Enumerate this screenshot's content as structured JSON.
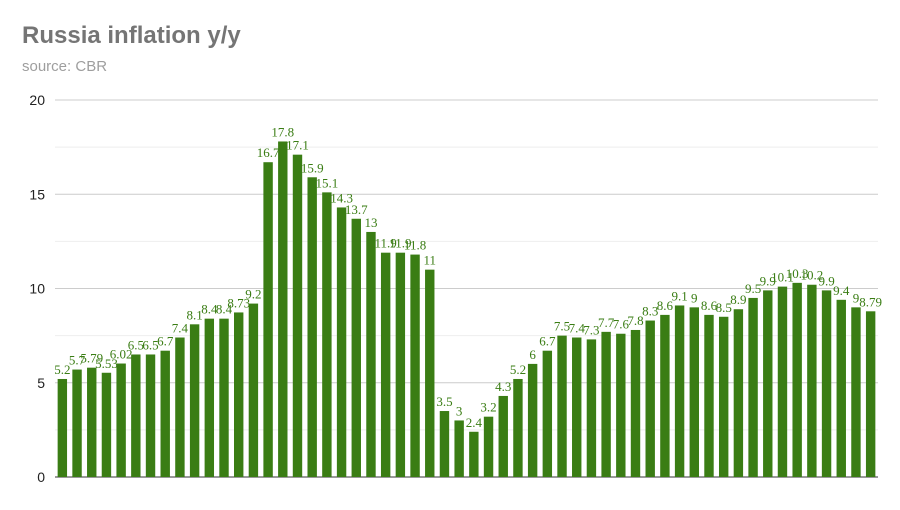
{
  "chart_data": {
    "type": "bar",
    "title": "Russia inflation y/y",
    "subtitle": "source: CBR",
    "xlabel": "",
    "ylabel": "",
    "ylim": [
      0,
      20
    ],
    "yticks": [
      "0",
      "5",
      "10",
      "15",
      "20"
    ],
    "grid": true,
    "legend": "none",
    "bar_color": "#3a7d14",
    "label_color": "#3a7d14",
    "values": [
      5.2,
      5.7,
      5.8,
      5.53,
      6.02,
      6.5,
      6.5,
      6.7,
      7.4,
      8.1,
      8.4,
      8.4,
      8.73,
      9.2,
      16.7,
      17.8,
      17.1,
      15.9,
      15.1,
      14.3,
      13.7,
      13,
      11.9,
      11.9,
      11.8,
      11,
      3.5,
      3,
      2.4,
      3.2,
      4.3,
      5.2,
      6,
      6.7,
      7.5,
      7.4,
      7.3,
      7.7,
      7.6,
      7.8,
      8.3,
      8.6,
      9.1,
      9,
      8.6,
      8.5,
      8.9,
      9.5,
      9.9,
      10.1,
      10.3,
      10.2,
      9.9,
      9.4,
      9,
      8.79
    ],
    "data_labels": [
      "5.2",
      "5.7",
      "5.79",
      "5.53",
      "6.02",
      "6.5",
      "6.5",
      "6.7",
      "7.4",
      "8.1",
      "8.4",
      "8.4",
      "8.73",
      "9.2",
      "16.7",
      "17.8",
      "17.1",
      "15.9",
      "15.1",
      "14.3",
      "13.7",
      "13",
      "11.9",
      "11.9",
      "11.8",
      "11",
      "3.5",
      "3",
      "2.4",
      "3.2",
      "4.3",
      "5.2",
      "6",
      "6.7",
      "7.5",
      "7.4",
      "7.3",
      "7.7",
      "7.6",
      "7.8",
      "8.3",
      "8.6",
      "9.1",
      "9",
      "8.6",
      "8.5",
      "8.9",
      "9.5",
      "9.9",
      "10.1",
      "10.3",
      "10.2",
      "9.9",
      "9.4",
      "9",
      "8.79"
    ]
  }
}
